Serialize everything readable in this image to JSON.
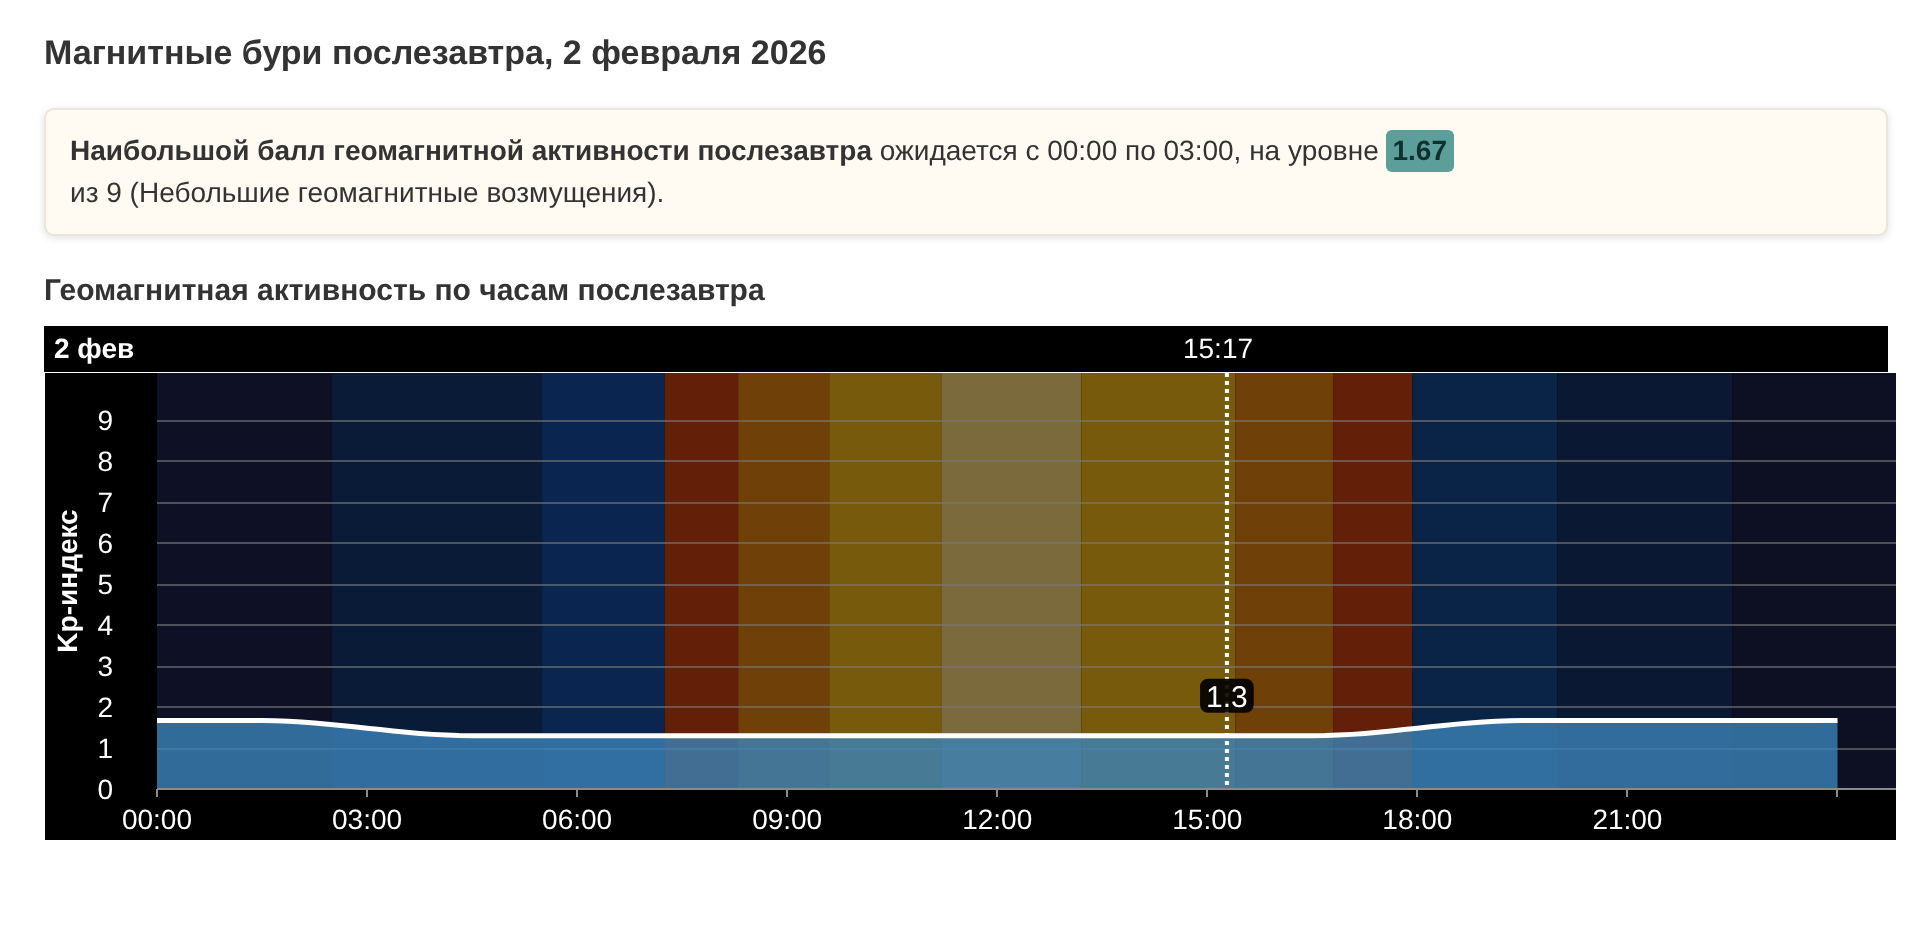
{
  "chart_data": {
    "type": "area",
    "title": "Магнитные бури послезавтра, 2 февраля 2026",
    "subtitle": "Геомагнитная активность по часам послезавтра",
    "ylabel": "Kp-индекс",
    "annotations": [
      "Наибольшой балл геомагнитной активности послезавтра",
      "ожидается с 00:00 по 03:00, на уровне",
      "1.67",
      "из 9 (Небольшие геомагнитные возмущения).",
      "2 фев",
      {
        "text": "1.3",
        "x": 15.28,
        "y": 1.3
      }
    ],
    "x": [
      0,
      1.5,
      4.5,
      7.5,
      10.5,
      13.5,
      16.5,
      19.5,
      22.5,
      24
    ],
    "series": [
      {
        "color": "#3b82b8",
        "values": [
          1.67,
          1.67,
          1.3,
          1.3,
          1.3,
          1.3,
          1.3,
          1.67,
          1.67,
          1.67
        ]
      }
    ],
    "xlim": [
      0,
      24.85
    ],
    "xticks": [
      {
        "value": 0,
        "label": "00:00"
      },
      {
        "value": 3,
        "label": "03:00"
      },
      {
        "value": 6,
        "label": "06:00"
      },
      {
        "value": 9,
        "label": "09:00"
      },
      {
        "value": 12,
        "label": "12:00"
      },
      {
        "value": 15,
        "label": "15:00"
      },
      {
        "value": 18,
        "label": "18:00"
      },
      {
        "value": 21,
        "label": "21:00"
      },
      {
        "value": 24,
        "label": null
      }
    ],
    "ylim": [
      0,
      10.16
    ],
    "yticks": [
      0,
      1,
      2,
      3,
      4,
      5,
      6,
      7,
      8,
      9
    ],
    "grid": "y",
    "ref_lines": [
      {
        "axis": "x",
        "value": 15.28,
        "label": "15:17",
        "line_style": "dotted",
        "color": "#ffffff"
      }
    ],
    "bands": [
      {
        "axis": "x",
        "from": 0,
        "to": 2.5,
        "color": "#0e1126"
      },
      {
        "axis": "x",
        "from": 2.5,
        "to": 5.5,
        "color": "#0a1b38"
      },
      {
        "axis": "x",
        "from": 5.5,
        "to": 7.25,
        "color": "#0a2650"
      },
      {
        "axis": "x",
        "from": 7.25,
        "to": 8.3,
        "color": "#641f08"
      },
      {
        "axis": "x",
        "from": 8.3,
        "to": 9.6,
        "color": "#6f4008"
      },
      {
        "axis": "x",
        "from": 9.6,
        "to": 11.2,
        "color": "#785a0c"
      },
      {
        "axis": "x",
        "from": 11.2,
        "to": 13.2,
        "color": "#7b6a3c"
      },
      {
        "axis": "x",
        "from": 13.2,
        "to": 15.4,
        "color": "#785a0c"
      },
      {
        "axis": "x",
        "from": 15.4,
        "to": 16.8,
        "color": "#6f4008"
      },
      {
        "axis": "x",
        "from": 16.8,
        "to": 17.93,
        "color": "#641f08"
      },
      {
        "axis": "x",
        "from": 17.93,
        "to": 20,
        "color": "#0a2448"
      },
      {
        "axis": "x",
        "from": 20,
        "to": 22.5,
        "color": "#0b1834"
      },
      {
        "axis": "x",
        "from": 22.5,
        "to": 24.85,
        "color": "#0d0f22"
      }
    ]
  }
}
